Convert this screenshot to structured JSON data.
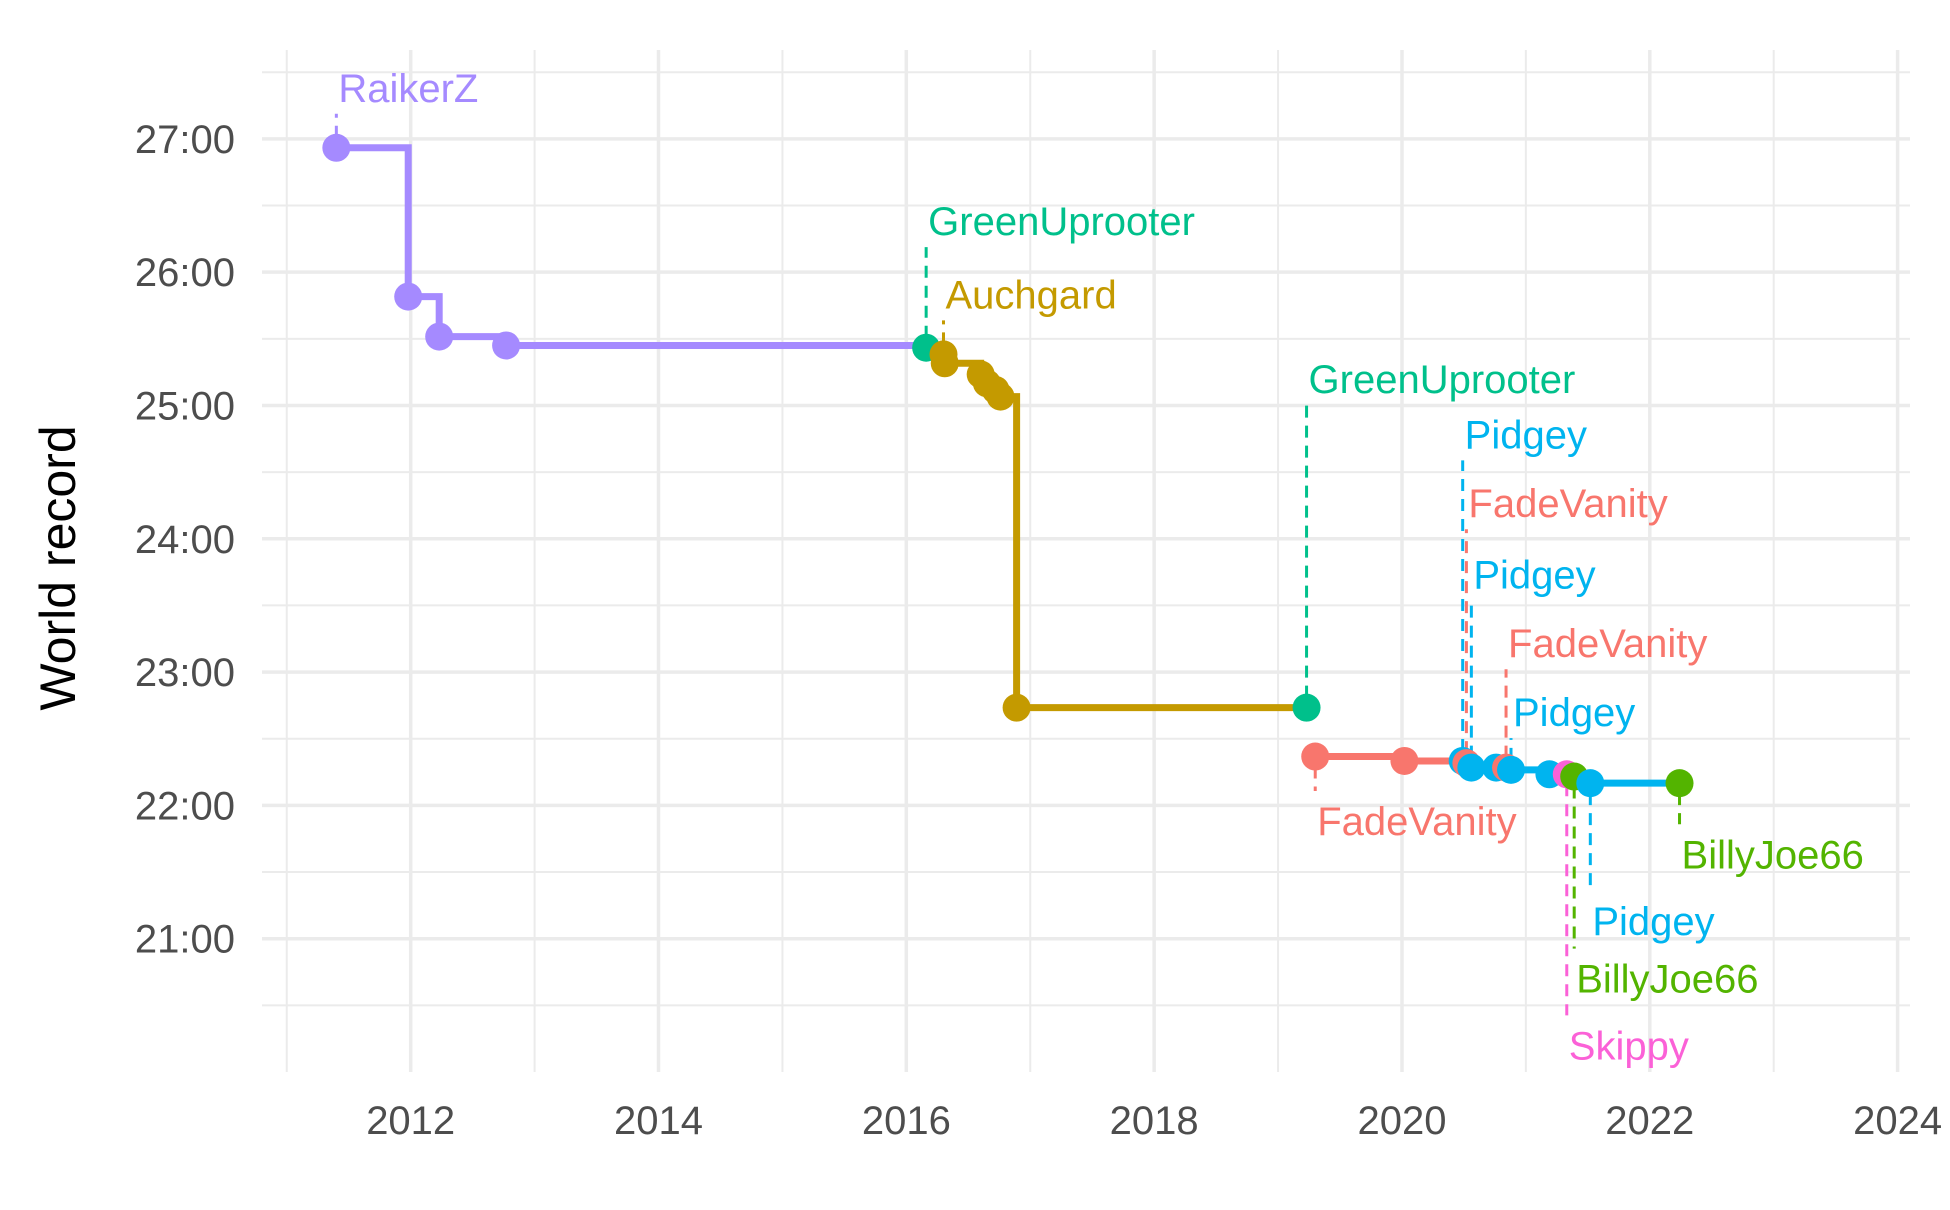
{
  "chart_data": {
    "type": "line",
    "title": "",
    "xlabel": "",
    "ylabel": "World record",
    "xlim": [
      2010.8,
      2024.1
    ],
    "ylim": [
      1200,
      1660
    ],
    "x_ticks": [
      2012,
      2014,
      2016,
      2018,
      2020,
      2022,
      2024
    ],
    "x_tick_labels": [
      "2012",
      "2014",
      "2016",
      "2018",
      "2020",
      "2022",
      "2024"
    ],
    "y_ticks": [
      1260,
      1320,
      1380,
      1440,
      1500,
      1560,
      1620
    ],
    "y_tick_labels": [
      "21:00",
      "22:00",
      "23:00",
      "24:00",
      "25:00",
      "26:00",
      "27:00"
    ],
    "grid": true,
    "legend": "none",
    "units": {
      "y": "seconds (shown as mm:ss)"
    },
    "colors": {
      "RaikerZ": "#a58aff",
      "GreenUprooter": "#00c08b",
      "Auchgard": "#c49a00",
      "FadeVanity": "#f8766d",
      "Pidgey": "#00b4ef",
      "Skippy": "#fb61d7",
      "BillyJoe66": "#53b400"
    },
    "records": [
      {
        "x": 2011.4,
        "y": 1616,
        "runner": "RaikerZ"
      },
      {
        "x": 2011.98,
        "y": 1549,
        "runner": "RaikerZ"
      },
      {
        "x": 2012.23,
        "y": 1531,
        "runner": "RaikerZ"
      },
      {
        "x": 2012.77,
        "y": 1527,
        "runner": "RaikerZ"
      },
      {
        "x": 2016.16,
        "y": 1526,
        "runner": "GreenUprooter"
      },
      {
        "x": 2016.3,
        "y": 1523,
        "runner": "Auchgard"
      },
      {
        "x": 2016.31,
        "y": 1519,
        "runner": "Auchgard"
      },
      {
        "x": 2016.6,
        "y": 1514,
        "runner": "Auchgard"
      },
      {
        "x": 2016.65,
        "y": 1510,
        "runner": "Auchgard"
      },
      {
        "x": 2016.72,
        "y": 1507,
        "runner": "Auchgard"
      },
      {
        "x": 2016.76,
        "y": 1504,
        "runner": "Auchgard"
      },
      {
        "x": 2016.89,
        "y": 1364,
        "runner": "Auchgard"
      },
      {
        "x": 2019.23,
        "y": 1364,
        "runner": "GreenUprooter"
      },
      {
        "x": 2019.3,
        "y": 1342,
        "runner": "FadeVanity"
      },
      {
        "x": 2020.02,
        "y": 1340,
        "runner": "FadeVanity"
      },
      {
        "x": 2020.49,
        "y": 1340,
        "runner": "Pidgey"
      },
      {
        "x": 2020.52,
        "y": 1339,
        "runner": "FadeVanity"
      },
      {
        "x": 2020.56,
        "y": 1337,
        "runner": "Pidgey"
      },
      {
        "x": 2020.76,
        "y": 1337,
        "runner": "Pidgey"
      },
      {
        "x": 2020.84,
        "y": 1337,
        "runner": "FadeVanity"
      },
      {
        "x": 2020.88,
        "y": 1336,
        "runner": "Pidgey"
      },
      {
        "x": 2021.19,
        "y": 1334,
        "runner": "Pidgey"
      },
      {
        "x": 2021.33,
        "y": 1334,
        "runner": "Skippy"
      },
      {
        "x": 2021.39,
        "y": 1333,
        "runner": "BillyJoe66"
      },
      {
        "x": 2021.52,
        "y": 1330,
        "runner": "Pidgey"
      },
      {
        "x": 2022.24,
        "y": 1330,
        "runner": "BillyJoe66"
      }
    ],
    "segments": [
      {
        "runner": "RaikerZ",
        "from": 0,
        "to": 3,
        "stop_x": 2016.16
      },
      {
        "runner": "Auchgard",
        "from": 5,
        "to": 11,
        "stop_x": 2019.23
      },
      {
        "runner": "FadeVanity",
        "from": 13,
        "to": 14,
        "stop_x": 2020.49
      },
      {
        "runner": "Pidgey",
        "from": 15,
        "to": 24,
        "stop_x": 2022.24
      }
    ],
    "annotations": [
      {
        "text": "RaikerZ",
        "runner": "RaikerZ",
        "x": 2011.4,
        "y_point": 1616,
        "y_text": 1643
      },
      {
        "text": "GreenUprooter",
        "runner": "GreenUprooter",
        "x": 2016.16,
        "y_point": 1526,
        "y_text": 1583
      },
      {
        "text": "Auchgard",
        "runner": "Auchgard",
        "x": 2016.3,
        "y_point": 1523,
        "y_text": 1550
      },
      {
        "text": "GreenUprooter",
        "runner": "GreenUprooter",
        "x": 2019.23,
        "y_point": 1364,
        "y_text": 1512
      },
      {
        "text": "Pidgey",
        "runner": "Pidgey",
        "x": 2020.49,
        "y_point": 1340,
        "y_text": 1487
      },
      {
        "text": "FadeVanity",
        "runner": "FadeVanity",
        "x": 2020.52,
        "y_point": 1339,
        "y_text": 1456
      },
      {
        "text": "Pidgey",
        "runner": "Pidgey",
        "x": 2020.56,
        "y_point": 1337,
        "y_text": 1424
      },
      {
        "text": "FadeVanity",
        "runner": "FadeVanity",
        "x": 2020.84,
        "y_point": 1337,
        "y_text": 1393
      },
      {
        "text": "Pidgey",
        "runner": "Pidgey",
        "x": 2020.88,
        "y_point": 1336,
        "y_text": 1362
      },
      {
        "text": "FadeVanity",
        "runner": "FadeVanity",
        "x": 2019.3,
        "y_point": 1342,
        "y_text": 1313
      },
      {
        "text": "BillyJoe66",
        "runner": "BillyJoe66",
        "x": 2022.24,
        "y_point": 1330,
        "y_text": 1298
      },
      {
        "text": "Pidgey",
        "runner": "Pidgey",
        "x": 2021.52,
        "y_point": 1330,
        "y_text": 1268
      },
      {
        "text": "BillyJoe66",
        "runner": "BillyJoe66",
        "x": 2021.39,
        "y_point": 1333,
        "y_text": 1242
      },
      {
        "text": "Skippy",
        "runner": "Skippy",
        "x": 2021.33,
        "y_point": 1334,
        "y_text": 1212
      }
    ]
  }
}
